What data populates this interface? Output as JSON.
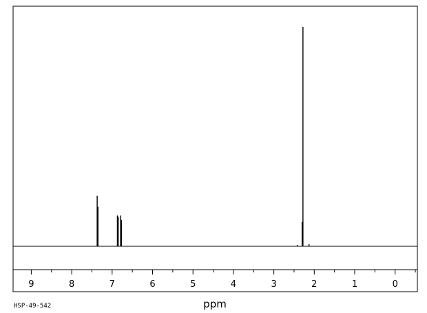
{
  "sample_id": "HSP-49-542",
  "chart_data": {
    "type": "line",
    "title": "",
    "xlabel": "ppm",
    "ylabel": "",
    "xlim": [
      9.45,
      -0.55
    ],
    "ylim": [
      0,
      1
    ],
    "x_reversed": true,
    "grid": false,
    "x_ticks": [
      9,
      8,
      7,
      6,
      5,
      4,
      3,
      2,
      1,
      0
    ],
    "x_tick_labels": [
      "9",
      "8",
      "7",
      "6",
      "5",
      "4",
      "3",
      "2",
      "1",
      "0"
    ],
    "x_minor_step": 0.5,
    "peaks": [
      {
        "ppm": 7.37,
        "height": 0.23
      },
      {
        "ppm": 7.35,
        "height": 0.18
      },
      {
        "ppm": 6.87,
        "height": 0.14
      },
      {
        "ppm": 6.85,
        "height": 0.135
      },
      {
        "ppm": 6.79,
        "height": 0.14
      },
      {
        "ppm": 6.77,
        "height": 0.12
      },
      {
        "ppm": 2.28,
        "height": 1.0
      },
      {
        "ppm": 2.3,
        "height": 0.11
      },
      {
        "ppm": 2.13,
        "height": 0.01
      },
      {
        "ppm": 2.42,
        "height": 0.006
      }
    ]
  }
}
